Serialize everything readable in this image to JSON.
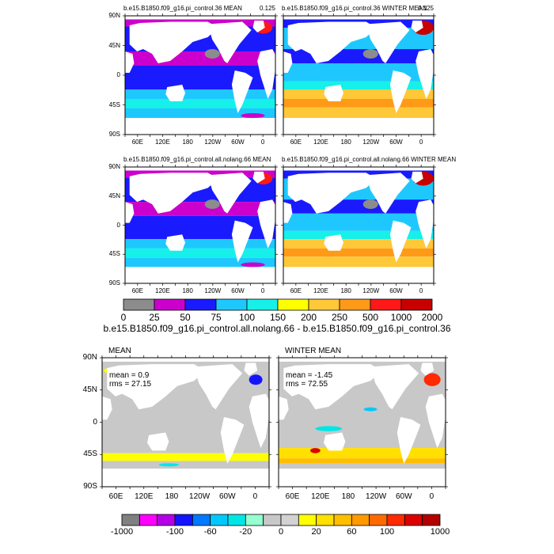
{
  "colors": {
    "land": "#ffffff",
    "missing": "#c0c0c0",
    "frame": "#000000"
  },
  "panels_top": [
    {
      "title": "b.e15.B1850.f09_g16.pi_control.36 MEAN",
      "corner": "0.125",
      "variant": "mean"
    },
    {
      "title": "b.e15.B1850.f09_g16.pi_control.36 WINTER MEAN",
      "corner": "0.125",
      "variant": "winter"
    },
    {
      "title": "b.e15.B1850.f09_g16.pi_control.all.nolang.66 MEAN",
      "corner": "",
      "variant": "mean"
    },
    {
      "title": "b.e15.B1850.f09_g16.pi_control.all.nolang.66 WINTER MEAN",
      "corner": "",
      "variant": "winter"
    }
  ],
  "lat_labels": [
    "90N",
    "45N",
    "0",
    "45S",
    "90S"
  ],
  "lon_labels": [
    "60E",
    "120E",
    "180",
    "120W",
    "60W",
    "0"
  ],
  "colorbar_top": {
    "colors": [
      "#8c8c8c",
      "#cc00cc",
      "#1a1aff",
      "#1ec8ff",
      "#17f0e8",
      "#ffff00",
      "#ffc838",
      "#ff9a18",
      "#ff1818",
      "#c80000"
    ],
    "labels": [
      "0",
      "25",
      "50",
      "75",
      "100",
      "150",
      "200",
      "250",
      "500",
      "1000",
      "2000"
    ],
    "title": "b.e15.B1850.f09_g16.pi_control.all.nolang.66 - b.e15.B1850.f09_g16.pi_control.36"
  },
  "panels_bottom": [
    {
      "title": "MEAN",
      "mean_text": "mean = 0.9",
      "rms_text": "rms = 27.15",
      "variant": "mean"
    },
    {
      "title": "WINTER MEAN",
      "mean_text": "mean = -1.45",
      "rms_text": "rms = 72.55",
      "variant": "winter"
    }
  ],
  "colorbar_bottom": {
    "colors": [
      "#808080",
      "#ff00ff",
      "#b400e6",
      "#1414ff",
      "#0078ff",
      "#00c8ff",
      "#00e6e6",
      "#96ffd2",
      "#c8c8c8",
      "#d2d2d2",
      "#ffff00",
      "#ffe000",
      "#ffbe00",
      "#ff9a00",
      "#ff6a00",
      "#ff2a00",
      "#dc0000",
      "#b40000"
    ],
    "labels": [
      "-1000",
      "-100",
      "-60",
      "-20",
      "0",
      "20",
      "60",
      "100",
      "1000"
    ]
  }
}
